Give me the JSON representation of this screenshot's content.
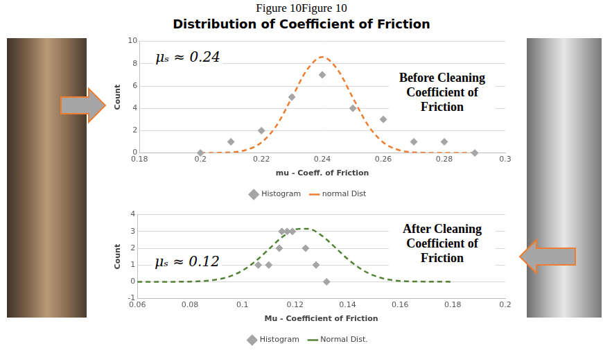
{
  "figure_label": "Figure 10Figure 10",
  "title": "Distribution of Coefficient of Friction",
  "chart_data": [
    {
      "type": "scatter",
      "x_label": "mu - Coeff. of Friction",
      "y_label": "Count",
      "annotations": [
        "μₛ ≈ 0.24",
        "Before Cleaning Coefficient of Friction"
      ],
      "xlim": [
        0.18,
        0.3
      ],
      "xticks": [
        0.18,
        0.2,
        0.22,
        0.24,
        0.26,
        0.28,
        0.3
      ],
      "ylim": [
        0,
        10
      ],
      "yticks": [
        0,
        2,
        4,
        6,
        8,
        10
      ],
      "grid": "y",
      "legend": "bottom",
      "series": [
        {
          "name": "Histogram",
          "type": "scatter",
          "marker": "diamond",
          "color": "#a5a5a5",
          "x": [
            0.2,
            0.21,
            0.22,
            0.23,
            0.24,
            0.25,
            0.26,
            0.27,
            0.28,
            0.29
          ],
          "values": [
            0,
            1,
            2,
            5,
            7,
            4,
            3,
            1,
            1,
            0
          ]
        },
        {
          "name": "normal Dist",
          "type": "line",
          "line_style": "dashed",
          "color": "#ed7d31",
          "x": [
            0.2,
            0.21,
            0.215,
            0.22,
            0.225,
            0.23,
            0.235,
            0.24,
            0.245,
            0.25,
            0.255,
            0.26,
            0.265,
            0.27,
            0.28,
            0.29
          ],
          "values": [
            0,
            0.06,
            0.27,
            0.94,
            2.47,
            4.95,
            7.46,
            8.6,
            7.46,
            4.95,
            2.47,
            0.94,
            0.27,
            0.06,
            0,
            0
          ]
        }
      ]
    },
    {
      "type": "scatter",
      "x_label": "Mu - Coefficient of Friction",
      "y_label": "Count",
      "annotations": [
        "μₛ ≈ 0.12",
        "After Cleaning Coefficient of Friction"
      ],
      "xlim": [
        0.06,
        0.2
      ],
      "xticks": [
        0.06,
        0.08,
        0.1,
        0.12,
        0.14,
        0.16,
        0.18,
        0.2
      ],
      "ylim": [
        -1,
        4
      ],
      "yticks": [
        -1,
        0,
        1,
        2,
        3,
        4
      ],
      "grid": "y",
      "legend": "bottom",
      "series": [
        {
          "name": "Normal Dist.",
          "type": "line",
          "line_style": "dashed",
          "color": "#548235",
          "x": [
            0.06,
            0.07,
            0.08,
            0.09,
            0.095,
            0.1,
            0.105,
            0.11,
            0.115,
            0.12,
            0.125,
            0.13,
            0.135,
            0.14,
            0.145,
            0.15,
            0.155,
            0.16,
            0.17,
            0.18
          ],
          "values": [
            0,
            0,
            0.01,
            0.13,
            0.31,
            0.67,
            1.23,
            1.94,
            2.65,
            3.12,
            3.16,
            2.77,
            2.09,
            1.36,
            0.77,
            0.37,
            0.15,
            0.05,
            0.01,
            0
          ]
        },
        {
          "name": "Histogram",
          "type": "scatter",
          "marker": "diamond",
          "color": "#a5a5a5",
          "x": [
            0.106,
            0.11,
            0.114,
            0.115,
            0.117,
            0.119,
            0.124,
            0.128,
            0.132
          ],
          "values": [
            1,
            1,
            2,
            3,
            3,
            3,
            2,
            1,
            0
          ]
        }
      ]
    }
  ]
}
